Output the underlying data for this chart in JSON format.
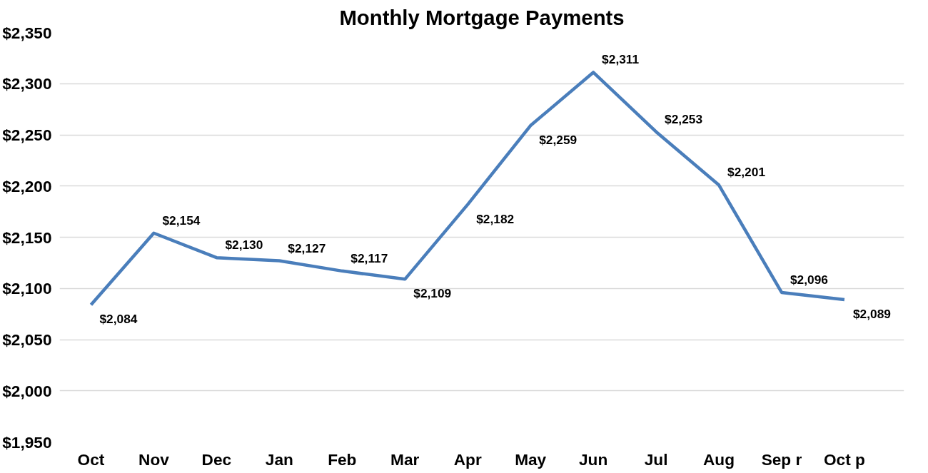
{
  "chart_data": {
    "type": "line",
    "title": "Monthly Mortgage Payments",
    "categories": [
      "Oct",
      "Nov",
      "Dec",
      "Jan",
      "Feb",
      "Mar",
      "Apr",
      "May",
      "Jun",
      "Jul",
      "Aug",
      "Sep r",
      "Oct p"
    ],
    "series": [
      {
        "color": "#4a7ebb",
        "values": [
          2084,
          2154,
          2130,
          2127,
          2117,
          2109,
          2182,
          2259,
          2311,
          2253,
          2201,
          2096,
          2089
        ],
        "value_labels": [
          "$2,084",
          "$2,154",
          "$2,130",
          "$2,127",
          "$2,117",
          "$2,109",
          "$2,182",
          "$2,259",
          "$2,311",
          "$2,253",
          "$2,201",
          "$2,096",
          "$2,089"
        ]
      }
    ],
    "ylim": [
      1950,
      2350
    ],
    "yticks": [
      {
        "value": 1950,
        "label": "$1,950"
      },
      {
        "value": 2000,
        "label": "$2,000"
      },
      {
        "value": 2050,
        "label": "$2,050"
      },
      {
        "value": 2100,
        "label": "$2,100"
      },
      {
        "value": 2150,
        "label": "$2,150"
      },
      {
        "value": 2200,
        "label": "$2,200"
      },
      {
        "value": 2250,
        "label": "$2,250"
      },
      {
        "value": 2300,
        "label": "$2,300"
      },
      {
        "value": 2350,
        "label": "$2,350"
      }
    ],
    "grid": "y",
    "legend": false,
    "line_style": "solid",
    "marker": "none"
  }
}
